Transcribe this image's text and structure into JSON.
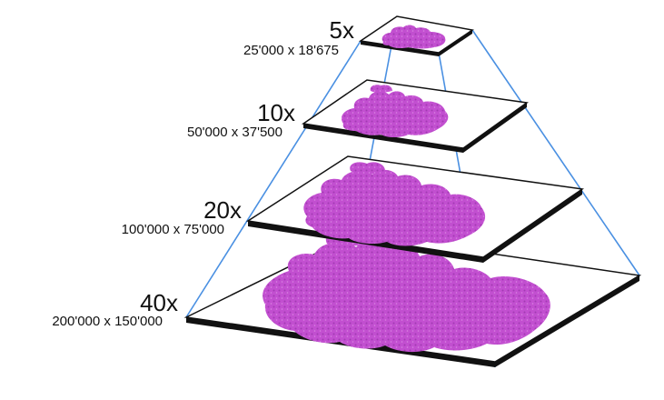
{
  "levels": [
    {
      "magnification": "5x",
      "dimensions": "25'000 x 18'675"
    },
    {
      "magnification": "10x",
      "dimensions": "50'000 x 37'500"
    },
    {
      "magnification": "20x",
      "dimensions": "100'000 x 75'000"
    },
    {
      "magnification": "40x",
      "dimensions": "200'000 x 150'000"
    }
  ],
  "colors": {
    "edge_line": "#4a90e2",
    "plate_top": "#ffffff",
    "plate_outline": "#111111",
    "plate_side": "#111111",
    "tissue": "#c24fd0",
    "tissue_dark": "#a23ab2",
    "label_text": "#111111"
  }
}
